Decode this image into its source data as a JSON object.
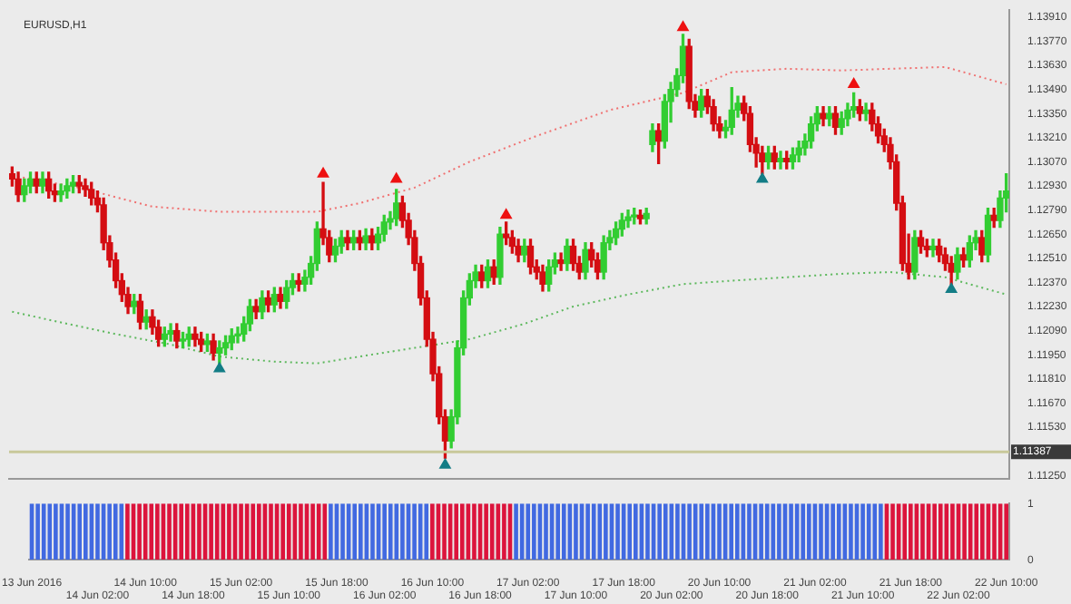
{
  "chart_data": [
    {
      "type": "candlestick",
      "title": "EURUSD,H1",
      "categories": [
        null,
        null,
        null,
        null,
        null,
        null,
        null,
        null,
        null,
        null,
        null,
        null,
        null,
        null,
        null,
        null,
        null,
        null,
        null,
        null,
        null,
        null,
        null,
        null,
        null,
        null,
        null,
        null,
        null,
        null,
        null,
        null,
        null,
        null,
        null,
        null,
        null,
        null,
        null,
        null,
        null,
        null,
        null,
        null,
        null,
        null,
        null,
        null,
        null,
        null,
        null,
        null,
        null,
        null,
        null,
        null,
        null,
        null,
        null,
        null,
        null,
        null,
        null,
        null,
        null,
        null,
        null,
        null,
        null,
        null,
        null,
        null,
        null,
        null,
        null,
        null,
        null,
        null,
        null,
        null,
        null,
        null,
        null,
        null,
        null,
        null,
        null,
        null,
        null,
        null,
        null,
        null,
        null,
        null,
        null,
        null,
        null,
        null,
        null,
        null,
        null,
        null,
        null,
        null,
        null,
        null,
        null,
        null,
        null,
        null,
        null,
        null,
        null,
        null,
        null,
        null,
        null,
        null,
        null,
        null,
        null,
        null,
        null,
        null,
        null,
        null,
        null,
        null,
        null,
        null,
        null,
        null,
        null,
        null,
        null,
        null,
        null,
        null,
        null,
        null,
        null,
        null,
        null,
        null,
        null,
        null,
        null,
        null,
        null,
        null,
        null,
        null,
        null,
        null,
        null,
        null,
        null,
        null,
        null,
        null,
        null,
        null,
        null,
        null
      ],
      "ohlc": [
        [
          1.13,
          1.1304,
          1.1293,
          1.1297
        ],
        [
          1.1297,
          1.1301,
          1.1284,
          1.1288
        ],
        [
          1.1288,
          1.1297,
          1.1284,
          1.1293
        ],
        [
          1.1293,
          1.1301,
          1.1289,
          1.1297
        ],
        [
          1.1297,
          1.1301,
          1.1289,
          1.1293
        ],
        [
          1.1293,
          1.1301,
          1.1289,
          1.1297
        ],
        [
          1.1297,
          1.1301,
          1.1286,
          1.129
        ],
        [
          1.129,
          1.1294,
          1.1284,
          1.1288
        ],
        [
          1.1288,
          1.1294,
          1.1284,
          1.129
        ],
        [
          1.129,
          1.1297,
          1.1286,
          1.1293
        ],
        [
          1.1293,
          1.1299,
          1.1289,
          1.1295
        ],
        [
          1.1295,
          1.1299,
          1.1289,
          1.1293
        ],
        [
          1.1293,
          1.1297,
          1.1287,
          1.1291
        ],
        [
          1.1291,
          1.1295,
          1.1282,
          1.1286
        ],
        [
          1.1286,
          1.129,
          1.1278,
          1.1282
        ],
        [
          1.1282,
          1.1286,
          1.1256,
          1.126
        ],
        [
          1.126,
          1.1264,
          1.1246,
          1.125
        ],
        [
          1.125,
          1.1254,
          1.1234,
          1.1238
        ],
        [
          1.1238,
          1.1242,
          1.1226,
          1.123
        ],
        [
          1.123,
          1.1234,
          1.1219,
          1.1223
        ],
        [
          1.1223,
          1.123,
          1.1219,
          1.1226
        ],
        [
          1.1226,
          1.123,
          1.121,
          1.1214
        ],
        [
          1.1214,
          1.1221,
          1.121,
          1.1217
        ],
        [
          1.1217,
          1.1221,
          1.1207,
          1.1211
        ],
        [
          1.1211,
          1.1215,
          1.12,
          1.1204
        ],
        [
          1.1204,
          1.1211,
          1.12,
          1.1207
        ],
        [
          1.1207,
          1.1213,
          1.1203,
          1.1209
        ],
        [
          1.1209,
          1.1213,
          1.1199,
          1.1203
        ],
        [
          1.1203,
          1.1208,
          1.1199,
          1.1204
        ],
        [
          1.1204,
          1.1211,
          1.12,
          1.1207
        ],
        [
          1.1207,
          1.1211,
          1.12,
          1.1204
        ],
        [
          1.1204,
          1.1208,
          1.1197,
          1.1201
        ],
        [
          1.1201,
          1.1207,
          1.1197,
          1.1203
        ],
        [
          1.1203,
          1.1207,
          1.1192,
          1.1196
        ],
        [
          1.1196,
          1.1203,
          1.119,
          1.1199
        ],
        [
          1.1199,
          1.1206,
          1.1195,
          1.1202
        ],
        [
          1.1202,
          1.121,
          1.1198,
          1.1206
        ],
        [
          1.1206,
          1.1211,
          1.1202,
          1.1207
        ],
        [
          1.1207,
          1.1217,
          1.1203,
          1.1213
        ],
        [
          1.1213,
          1.1227,
          1.1209,
          1.1223
        ],
        [
          1.1223,
          1.1227,
          1.1216,
          1.122
        ],
        [
          1.122,
          1.1232,
          1.1216,
          1.1228
        ],
        [
          1.1228,
          1.1232,
          1.122,
          1.1224
        ],
        [
          1.1224,
          1.1234,
          1.122,
          1.123
        ],
        [
          1.123,
          1.1234,
          1.1222,
          1.1226
        ],
        [
          1.1226,
          1.1238,
          1.1222,
          1.1234
        ],
        [
          1.1234,
          1.1242,
          1.123,
          1.1238
        ],
        [
          1.1238,
          1.1242,
          1.1232,
          1.1236
        ],
        [
          1.1236,
          1.1244,
          1.1232,
          1.124
        ],
        [
          1.124,
          1.1252,
          1.1236,
          1.1248
        ],
        [
          1.1248,
          1.1272,
          1.1244,
          1.1268
        ],
        [
          1.1268,
          1.1295,
          1.1259,
          1.1263
        ],
        [
          1.1263,
          1.1267,
          1.1249,
          1.1253
        ],
        [
          1.1253,
          1.1262,
          1.1249,
          1.1258
        ],
        [
          1.1258,
          1.1267,
          1.1254,
          1.1263
        ],
        [
          1.1263,
          1.1267,
          1.1256,
          1.126
        ],
        [
          1.126,
          1.1267,
          1.1256,
          1.1263
        ],
        [
          1.1263,
          1.1267,
          1.1256,
          1.126
        ],
        [
          1.126,
          1.1268,
          1.1256,
          1.1264
        ],
        [
          1.1264,
          1.1268,
          1.1256,
          1.126
        ],
        [
          1.126,
          1.1269,
          1.1256,
          1.1265
        ],
        [
          1.1265,
          1.1276,
          1.1261,
          1.1272
        ],
        [
          1.1272,
          1.1278,
          1.1268,
          1.1274
        ],
        [
          1.1274,
          1.1291,
          1.127,
          1.1283
        ],
        [
          1.1283,
          1.1287,
          1.1269,
          1.1273
        ],
        [
          1.1273,
          1.1277,
          1.1259,
          1.1263
        ],
        [
          1.1263,
          1.1267,
          1.1244,
          1.1248
        ],
        [
          1.1248,
          1.1252,
          1.1224,
          1.1228
        ],
        [
          1.1228,
          1.1232,
          1.12,
          1.1204
        ],
        [
          1.1204,
          1.1208,
          1.118,
          1.1184
        ],
        [
          1.1184,
          1.1188,
          1.1155,
          1.1159
        ],
        [
          1.1159,
          1.1163,
          1.1135,
          1.1145
        ],
        [
          1.1145,
          1.1163,
          1.1141,
          1.1159
        ],
        [
          1.1159,
          1.1203,
          1.1155,
          1.1199
        ],
        [
          1.1199,
          1.1232,
          1.1195,
          1.1228
        ],
        [
          1.1228,
          1.1242,
          1.1224,
          1.1238
        ],
        [
          1.1238,
          1.1247,
          1.1234,
          1.1243
        ],
        [
          1.1243,
          1.1247,
          1.1234,
          1.1238
        ],
        [
          1.1238,
          1.125,
          1.1234,
          1.1246
        ],
        [
          1.1246,
          1.125,
          1.1236,
          1.124
        ],
        [
          1.124,
          1.1269,
          1.1236,
          1.1265
        ],
        [
          1.1265,
          1.1272,
          1.1259,
          1.1263
        ],
        [
          1.1263,
          1.1267,
          1.1254,
          1.1258
        ],
        [
          1.1258,
          1.1262,
          1.1249,
          1.1253
        ],
        [
          1.1253,
          1.1262,
          1.1249,
          1.1258
        ],
        [
          1.1258,
          1.1262,
          1.1242,
          1.1246
        ],
        [
          1.1246,
          1.125,
          1.1239,
          1.1243
        ],
        [
          1.1243,
          1.1247,
          1.1232,
          1.1236
        ],
        [
          1.1236,
          1.125,
          1.1232,
          1.1246
        ],
        [
          1.1246,
          1.1254,
          1.1242,
          1.125
        ],
        [
          1.125,
          1.1254,
          1.1244,
          1.1248
        ],
        [
          1.1248,
          1.1262,
          1.1244,
          1.1258
        ],
        [
          1.1258,
          1.1262,
          1.1244,
          1.1248
        ],
        [
          1.1248,
          1.1252,
          1.1239,
          1.1243
        ],
        [
          1.1243,
          1.126,
          1.1239,
          1.1256
        ],
        [
          1.1256,
          1.126,
          1.1246,
          1.125
        ],
        [
          1.125,
          1.1254,
          1.1239,
          1.1243
        ],
        [
          1.1243,
          1.1264,
          1.1239,
          1.126
        ],
        [
          1.126,
          1.1267,
          1.1256,
          1.1263
        ],
        [
          1.1263,
          1.1272,
          1.1259,
          1.1268
        ],
        [
          1.1268,
          1.1277,
          1.1264,
          1.1273
        ],
        [
          1.1273,
          1.1279,
          1.1269,
          1.1275
        ],
        [
          1.1275,
          1.128,
          1.1271,
          1.1276
        ],
        [
          1.1276,
          1.1279,
          1.1271,
          1.1274
        ],
        [
          1.1274,
          1.128,
          1.1271,
          1.1277
        ],
        [
          1.1317,
          1.1329,
          1.1313,
          1.1325
        ],
        [
          1.1325,
          1.1329,
          1.1306,
          1.1319
        ],
        [
          1.1319,
          1.1346,
          1.1315,
          1.1342
        ],
        [
          1.1342,
          1.1353,
          1.133,
          1.1349
        ],
        [
          1.1349,
          1.1361,
          1.1345,
          1.1357
        ],
        [
          1.1357,
          1.1381,
          1.1353,
          1.1374
        ],
        [
          1.1374,
          1.1378,
          1.1338,
          1.1342
        ],
        [
          1.1342,
          1.1346,
          1.1333,
          1.1337
        ],
        [
          1.1337,
          1.1349,
          1.1333,
          1.1345
        ],
        [
          1.1345,
          1.1349,
          1.1335,
          1.1339
        ],
        [
          1.1339,
          1.1343,
          1.1325,
          1.1329
        ],
        [
          1.1329,
          1.1333,
          1.1321,
          1.1325
        ],
        [
          1.1325,
          1.1331,
          1.1321,
          1.1327
        ],
        [
          1.1327,
          1.135,
          1.1323,
          1.1337
        ],
        [
          1.1337,
          1.1345,
          1.1333,
          1.1341
        ],
        [
          1.1341,
          1.1345,
          1.1331,
          1.1335
        ],
        [
          1.1335,
          1.1339,
          1.1313,
          1.1317
        ],
        [
          1.1317,
          1.1321,
          1.1304,
          1.1312
        ],
        [
          1.1312,
          1.1316,
          1.13,
          1.1307
        ],
        [
          1.1307,
          1.1316,
          1.1303,
          1.1312
        ],
        [
          1.1312,
          1.1316,
          1.1303,
          1.1307
        ],
        [
          1.1307,
          1.1313,
          1.1303,
          1.1309
        ],
        [
          1.1309,
          1.1313,
          1.1303,
          1.1307
        ],
        [
          1.1307,
          1.1315,
          1.1303,
          1.1311
        ],
        [
          1.1311,
          1.1319,
          1.1307,
          1.1315
        ],
        [
          1.1315,
          1.1323,
          1.1311,
          1.1319
        ],
        [
          1.1319,
          1.1333,
          1.1315,
          1.1329
        ],
        [
          1.1329,
          1.1339,
          1.1325,
          1.1335
        ],
        [
          1.1335,
          1.1339,
          1.1328,
          1.1332
        ],
        [
          1.1332,
          1.1339,
          1.1328,
          1.1335
        ],
        [
          1.1335,
          1.1339,
          1.1323,
          1.1327
        ],
        [
          1.1327,
          1.1336,
          1.1323,
          1.1332
        ],
        [
          1.1332,
          1.1341,
          1.1328,
          1.1337
        ],
        [
          1.1337,
          1.1347,
          1.1333,
          1.1339
        ],
        [
          1.1339,
          1.1343,
          1.1331,
          1.1335
        ],
        [
          1.1335,
          1.1341,
          1.1331,
          1.1337
        ],
        [
          1.1337,
          1.1341,
          1.1325,
          1.1329
        ],
        [
          1.1329,
          1.1333,
          1.1318,
          1.1322
        ],
        [
          1.1322,
          1.1326,
          1.1313,
          1.1317
        ],
        [
          1.1317,
          1.1321,
          1.1303,
          1.1307
        ],
        [
          1.1307,
          1.1311,
          1.1279,
          1.1283
        ],
        [
          1.1283,
          1.1287,
          1.1244,
          1.1248
        ],
        [
          1.1248,
          1.1265,
          1.1239,
          1.1243
        ],
        [
          1.1243,
          1.1267,
          1.1239,
          1.1263
        ],
        [
          1.1263,
          1.1267,
          1.1254,
          1.1258
        ],
        [
          1.1258,
          1.1262,
          1.1252,
          1.1256
        ],
        [
          1.1256,
          1.1262,
          1.1252,
          1.1258
        ],
        [
          1.1258,
          1.1262,
          1.1249,
          1.1253
        ],
        [
          1.1253,
          1.1257,
          1.1244,
          1.1248
        ],
        [
          1.1248,
          1.1252,
          1.1236,
          1.1243
        ],
        [
          1.1243,
          1.1257,
          1.1239,
          1.1253
        ],
        [
          1.1253,
          1.1257,
          1.1246,
          1.125
        ],
        [
          1.125,
          1.1264,
          1.1246,
          1.126
        ],
        [
          1.126,
          1.1267,
          1.1256,
          1.1263
        ],
        [
          1.1263,
          1.1267,
          1.1249,
          1.1253
        ],
        [
          1.1253,
          1.128,
          1.1249,
          1.1276
        ],
        [
          1.1276,
          1.128,
          1.1269,
          1.1273
        ],
        [
          1.1273,
          1.129,
          1.1269,
          1.1286
        ],
        [
          1.1286,
          1.13,
          1.1278,
          1.129
        ]
      ],
      "series": [
        {
          "type": "line",
          "color": "#f07070",
          "line_style": "dotted",
          "values": [
            1.1299,
            null,
            null,
            null,
            null,
            null,
            null,
            null,
            null,
            null,
            null,
            1.1292,
            null,
            null,
            null,
            null,
            null,
            null,
            null,
            null,
            null,
            null,
            null,
            1.1281,
            null,
            null,
            null,
            null,
            null,
            null,
            null,
            null,
            null,
            null,
            1.1278,
            null,
            null,
            null,
            null,
            null,
            null,
            null,
            null,
            null,
            null,
            null,
            null,
            null,
            null,
            null,
            1.1278,
            null,
            null,
            null,
            null,
            null,
            null,
            1.1283,
            null,
            null,
            null,
            null,
            null,
            null,
            null,
            null,
            1.1292,
            null,
            null,
            null,
            null,
            null,
            null,
            null,
            null,
            1.1307,
            null,
            null,
            null,
            null,
            null,
            null,
            null,
            null,
            null,
            null,
            1.1322,
            null,
            null,
            null,
            null,
            null,
            null,
            null,
            null,
            null,
            null,
            null,
            1.1337,
            null,
            null,
            null,
            null,
            null,
            null,
            null,
            null,
            null,
            null,
            null,
            1.1347,
            null,
            null,
            null,
            null,
            null,
            null,
            null,
            1.1359,
            null,
            null,
            null,
            null,
            null,
            null,
            null,
            null,
            1.1361,
            null,
            null,
            null,
            null,
            null,
            null,
            null,
            null,
            1.136,
            null,
            null,
            null,
            null,
            null,
            null,
            null,
            1.1361,
            null,
            null,
            null,
            null,
            null,
            null,
            null,
            null,
            1.1362,
            null,
            null,
            null,
            null,
            null,
            null,
            null,
            null,
            null,
            1.1352
          ]
        },
        {
          "type": "line",
          "color": "#5cb85c",
          "line_style": "dotted",
          "values": [
            1.122,
            null,
            null,
            null,
            null,
            null,
            null,
            null,
            null,
            1.1213,
            null,
            null,
            null,
            null,
            null,
            null,
            null,
            1.1207,
            null,
            null,
            null,
            null,
            null,
            null,
            null,
            null,
            1.1201,
            null,
            null,
            null,
            null,
            null,
            null,
            null,
            1.1194,
            null,
            null,
            null,
            null,
            null,
            null,
            null,
            null,
            1.1191,
            null,
            null,
            null,
            null,
            null,
            null,
            1.119,
            null,
            null,
            null,
            null,
            null,
            null,
            1.1194,
            null,
            null,
            null,
            null,
            null,
            null,
            null,
            null,
            1.1199,
            null,
            null,
            null,
            null,
            null,
            null,
            null,
            null,
            1.1204,
            null,
            null,
            null,
            null,
            null,
            null,
            null,
            null,
            1.1213,
            null,
            null,
            null,
            null,
            null,
            null,
            null,
            1.1223,
            null,
            null,
            null,
            null,
            null,
            null,
            null,
            null,
            1.123,
            null,
            null,
            null,
            null,
            null,
            null,
            null,
            null,
            1.1236,
            null,
            null,
            null,
            null,
            null,
            null,
            null,
            1.1238,
            null,
            null,
            null,
            null,
            null,
            null,
            null,
            null,
            1.124,
            null,
            null,
            null,
            null,
            null,
            null,
            null,
            null,
            1.1242,
            null,
            null,
            null,
            null,
            null,
            null,
            null,
            1.1243,
            null,
            null,
            null,
            null,
            null,
            null,
            null,
            null,
            1.124,
            null,
            null,
            null,
            null,
            null,
            null,
            null,
            null,
            null,
            1.123
          ]
        },
        {
          "type": "scatter",
          "color": "#ee1111",
          "marker": "triangle",
          "values": [
            null,
            null,
            null,
            null,
            null,
            null,
            null,
            null,
            null,
            null,
            null,
            null,
            null,
            null,
            null,
            null,
            null,
            null,
            null,
            null,
            null,
            null,
            null,
            null,
            null,
            null,
            null,
            null,
            null,
            null,
            null,
            null,
            null,
            null,
            null,
            null,
            null,
            null,
            null,
            null,
            null,
            null,
            null,
            null,
            null,
            null,
            null,
            null,
            null,
            null,
            null,
            1.13,
            null,
            null,
            null,
            null,
            null,
            null,
            null,
            null,
            null,
            null,
            null,
            1.1297,
            null,
            null,
            null,
            null,
            null,
            null,
            null,
            null,
            null,
            null,
            null,
            null,
            null,
            null,
            null,
            null,
            null,
            1.1276,
            null,
            null,
            null,
            null,
            null,
            null,
            null,
            null,
            null,
            null,
            null,
            null,
            null,
            null,
            null,
            null,
            null,
            null,
            null,
            null,
            null,
            null,
            null,
            null,
            null,
            null,
            null,
            null,
            1.1385,
            null,
            null,
            null,
            null,
            null,
            null,
            null,
            null,
            null,
            null,
            null,
            null,
            null,
            null,
            null,
            null,
            null,
            null,
            null,
            null,
            null,
            null,
            null,
            null,
            null,
            null,
            null,
            1.1352,
            null,
            null,
            null,
            null,
            null,
            null,
            null,
            null,
            null,
            null,
            null,
            null,
            null,
            null,
            null,
            null,
            null,
            null,
            null,
            null,
            null,
            null,
            null,
            null,
            null
          ]
        },
        {
          "type": "scatter",
          "color": "#137d86",
          "marker": "triangle",
          "values": [
            null,
            null,
            null,
            null,
            null,
            null,
            null,
            null,
            null,
            null,
            null,
            null,
            null,
            null,
            null,
            null,
            null,
            null,
            null,
            null,
            null,
            null,
            null,
            null,
            null,
            null,
            null,
            null,
            null,
            null,
            null,
            null,
            null,
            null,
            1.1187,
            null,
            null,
            null,
            null,
            null,
            null,
            null,
            null,
            null,
            null,
            null,
            null,
            null,
            null,
            null,
            null,
            null,
            null,
            null,
            null,
            null,
            null,
            null,
            null,
            null,
            null,
            null,
            null,
            null,
            null,
            null,
            null,
            null,
            null,
            null,
            null,
            1.1131,
            null,
            null,
            null,
            null,
            null,
            null,
            null,
            null,
            null,
            null,
            null,
            null,
            null,
            null,
            null,
            null,
            null,
            null,
            null,
            null,
            null,
            null,
            null,
            null,
            null,
            null,
            null,
            null,
            null,
            null,
            null,
            null,
            null,
            null,
            null,
            null,
            null,
            null,
            null,
            null,
            null,
            null,
            null,
            null,
            null,
            null,
            null,
            null,
            null,
            null,
            null,
            1.1297,
            null,
            null,
            null,
            null,
            null,
            null,
            null,
            null,
            null,
            null,
            null,
            null,
            null,
            null,
            null,
            null,
            null,
            null,
            null,
            null,
            null,
            null,
            null,
            null,
            null,
            null,
            null,
            null,
            null,
            null,
            1.1233,
            null,
            null,
            null,
            null,
            null,
            null,
            null,
            null,
            null
          ]
        }
      ],
      "ylim": [
        1.1123,
        1.1395
      ],
      "yticks": [
        {
          "value": 1.1125,
          "label": "1.11250"
        },
        {
          "value": 1.1153,
          "label": "1.11530"
        },
        {
          "value": 1.1167,
          "label": "1.11670"
        },
        {
          "value": 1.1181,
          "label": "1.11810"
        },
        {
          "value": 1.1195,
          "label": "1.11950"
        },
        {
          "value": 1.1209,
          "label": "1.12090"
        },
        {
          "value": 1.1223,
          "label": "1.12230"
        },
        {
          "value": 1.1237,
          "label": "1.12370"
        },
        {
          "value": 1.1251,
          "label": "1.12510"
        },
        {
          "value": 1.1265,
          "label": "1.12650"
        },
        {
          "value": 1.1279,
          "label": "1.12790"
        },
        {
          "value": 1.1293,
          "label": "1.12930"
        },
        {
          "value": 1.1307,
          "label": "1.13070"
        },
        {
          "value": 1.1321,
          "label": "1.13210"
        },
        {
          "value": 1.1335,
          "label": "1.13350"
        },
        {
          "value": 1.1349,
          "label": "1.13490"
        },
        {
          "value": 1.1363,
          "label": "1.13630"
        },
        {
          "value": 1.1377,
          "label": "1.13770"
        },
        {
          "value": 1.1391,
          "label": "1.13910"
        }
      ],
      "ref_lines": [
        {
          "axis": "y",
          "value": 1.11387,
          "label": "1.11387",
          "color": "#c8c89a"
        }
      ],
      "tick_labels": "y",
      "legend": false
    },
    {
      "type": "bar",
      "categories": [
        "13 Jun 2016",
        null,
        null,
        null,
        null,
        null,
        null,
        null,
        null,
        null,
        null,
        "14 Jun 02:00",
        null,
        null,
        null,
        null,
        null,
        null,
        null,
        "14 Jun 10:00",
        null,
        null,
        null,
        null,
        null,
        null,
        null,
        "14 Jun 18:00",
        null,
        null,
        null,
        null,
        null,
        null,
        null,
        "15 Jun 02:00",
        null,
        null,
        null,
        null,
        null,
        null,
        null,
        "15 Jun 10:00",
        null,
        null,
        null,
        null,
        null,
        null,
        null,
        "15 Jun 18:00",
        null,
        null,
        null,
        null,
        null,
        null,
        null,
        "16 Jun 02:00",
        null,
        null,
        null,
        null,
        null,
        null,
        null,
        "16 Jun 10:00",
        null,
        null,
        null,
        null,
        null,
        null,
        null,
        "16 Jun 18:00",
        null,
        null,
        null,
        null,
        null,
        null,
        null,
        "17 Jun 02:00",
        null,
        null,
        null,
        null,
        null,
        null,
        null,
        "17 Jun 10:00",
        null,
        null,
        null,
        null,
        null,
        null,
        null,
        "17 Jun 18:00",
        null,
        null,
        null,
        null,
        null,
        null,
        null,
        "20 Jun 02:00",
        null,
        null,
        null,
        null,
        null,
        null,
        null,
        "20 Jun 10:00",
        null,
        null,
        null,
        null,
        null,
        null,
        null,
        "20 Jun 18:00",
        null,
        null,
        null,
        null,
        null,
        null,
        null,
        "21 Jun 02:00",
        null,
        null,
        null,
        null,
        null,
        null,
        null,
        "21 Jun 10:00",
        null,
        null,
        null,
        null,
        null,
        null,
        null,
        "21 Jun 18:00",
        null,
        null,
        null,
        null,
        null,
        null,
        null,
        "22 Jun 02:00",
        null,
        null,
        null,
        null,
        null,
        null,
        null,
        "22 Jun 10:00"
      ],
      "values": [
        1,
        1,
        1,
        1,
        1,
        1,
        1,
        1,
        1,
        1,
        1,
        1,
        1,
        1,
        1,
        1,
        1,
        1,
        1,
        1,
        1,
        1,
        1,
        1,
        1,
        1,
        1,
        1,
        1,
        1,
        1,
        1,
        1,
        1,
        1,
        1,
        1,
        1,
        1,
        1,
        1,
        1,
        1,
        1,
        1,
        1,
        1,
        1,
        1,
        1,
        1,
        1,
        1,
        1,
        1,
        1,
        1,
        1,
        1,
        1,
        1,
        1,
        1,
        1,
        1,
        1,
        1,
        1,
        1,
        1,
        1,
        1,
        1,
        1,
        1,
        1,
        1,
        1,
        1,
        1,
        1,
        1,
        1,
        1,
        1,
        1,
        1,
        1,
        1,
        1,
        1,
        1,
        1,
        1,
        1,
        1,
        1,
        1,
        1,
        1,
        1,
        1,
        1,
        1,
        1,
        1,
        1,
        1,
        1,
        1,
        1,
        1,
        1,
        1,
        1,
        1,
        1,
        1,
        1,
        1,
        1,
        1,
        1,
        1,
        1,
        1,
        1,
        1,
        1,
        1,
        1,
        1,
        1,
        1,
        1,
        1,
        1,
        1,
        1,
        1,
        1,
        1,
        1,
        1,
        1,
        1,
        1,
        1,
        1,
        1,
        1,
        1,
        1,
        1,
        1,
        1,
        1,
        1,
        1,
        1,
        1,
        1,
        1,
        1
      ],
      "colors": [
        "#4169e1",
        "#4169e1",
        "#4169e1",
        "#4169e1",
        "#4169e1",
        "#4169e1",
        "#4169e1",
        "#4169e1",
        "#4169e1",
        "#4169e1",
        "#4169e1",
        "#4169e1",
        "#4169e1",
        "#4169e1",
        "#4169e1",
        "#4169e1",
        "#dc143c",
        "#dc143c",
        "#dc143c",
        "#dc143c",
        "#dc143c",
        "#dc143c",
        "#dc143c",
        "#dc143c",
        "#dc143c",
        "#dc143c",
        "#dc143c",
        "#dc143c",
        "#dc143c",
        "#dc143c",
        "#dc143c",
        "#dc143c",
        "#dc143c",
        "#dc143c",
        "#dc143c",
        "#dc143c",
        "#dc143c",
        "#dc143c",
        "#dc143c",
        "#dc143c",
        "#dc143c",
        "#dc143c",
        "#dc143c",
        "#dc143c",
        "#dc143c",
        "#dc143c",
        "#dc143c",
        "#dc143c",
        "#dc143c",
        "#dc143c",
        "#4169e1",
        "#4169e1",
        "#4169e1",
        "#4169e1",
        "#4169e1",
        "#4169e1",
        "#4169e1",
        "#4169e1",
        "#4169e1",
        "#4169e1",
        "#4169e1",
        "#4169e1",
        "#4169e1",
        "#4169e1",
        "#4169e1",
        "#4169e1",
        "#4169e1",
        "#dc143c",
        "#dc143c",
        "#dc143c",
        "#dc143c",
        "#dc143c",
        "#dc143c",
        "#dc143c",
        "#dc143c",
        "#dc143c",
        "#dc143c",
        "#dc143c",
        "#dc143c",
        "#dc143c",
        "#dc143c",
        "#4169e1",
        "#4169e1",
        "#4169e1",
        "#4169e1",
        "#4169e1",
        "#4169e1",
        "#4169e1",
        "#4169e1",
        "#4169e1",
        "#4169e1",
        "#4169e1",
        "#4169e1",
        "#4169e1",
        "#4169e1",
        "#4169e1",
        "#4169e1",
        "#4169e1",
        "#4169e1",
        "#4169e1",
        "#4169e1",
        "#4169e1",
        "#4169e1",
        "#4169e1",
        "#4169e1",
        "#4169e1",
        "#4169e1",
        "#4169e1",
        "#4169e1",
        "#4169e1",
        "#4169e1",
        "#4169e1",
        "#4169e1",
        "#4169e1",
        "#4169e1",
        "#4169e1",
        "#4169e1",
        "#4169e1",
        "#4169e1",
        "#4169e1",
        "#4169e1",
        "#4169e1",
        "#4169e1",
        "#4169e1",
        "#4169e1",
        "#4169e1",
        "#4169e1",
        "#4169e1",
        "#4169e1",
        "#4169e1",
        "#4169e1",
        "#4169e1",
        "#4169e1",
        "#4169e1",
        "#4169e1",
        "#4169e1",
        "#4169e1",
        "#4169e1",
        "#4169e1",
        "#4169e1",
        "#4169e1",
        "#4169e1",
        "#4169e1",
        "#dc143c",
        "#dc143c",
        "#dc143c",
        "#dc143c",
        "#dc143c",
        "#dc143c",
        "#dc143c",
        "#dc143c",
        "#dc143c",
        "#dc143c",
        "#dc143c",
        "#dc143c",
        "#dc143c",
        "#dc143c",
        "#dc143c",
        "#dc143c",
        "#dc143c",
        "#dc143c",
        "#dc143c",
        "#dc143c",
        "#dc143c"
      ],
      "ylim": [
        0,
        1
      ],
      "yticks": [
        0,
        1
      ],
      "legend": false
    }
  ]
}
